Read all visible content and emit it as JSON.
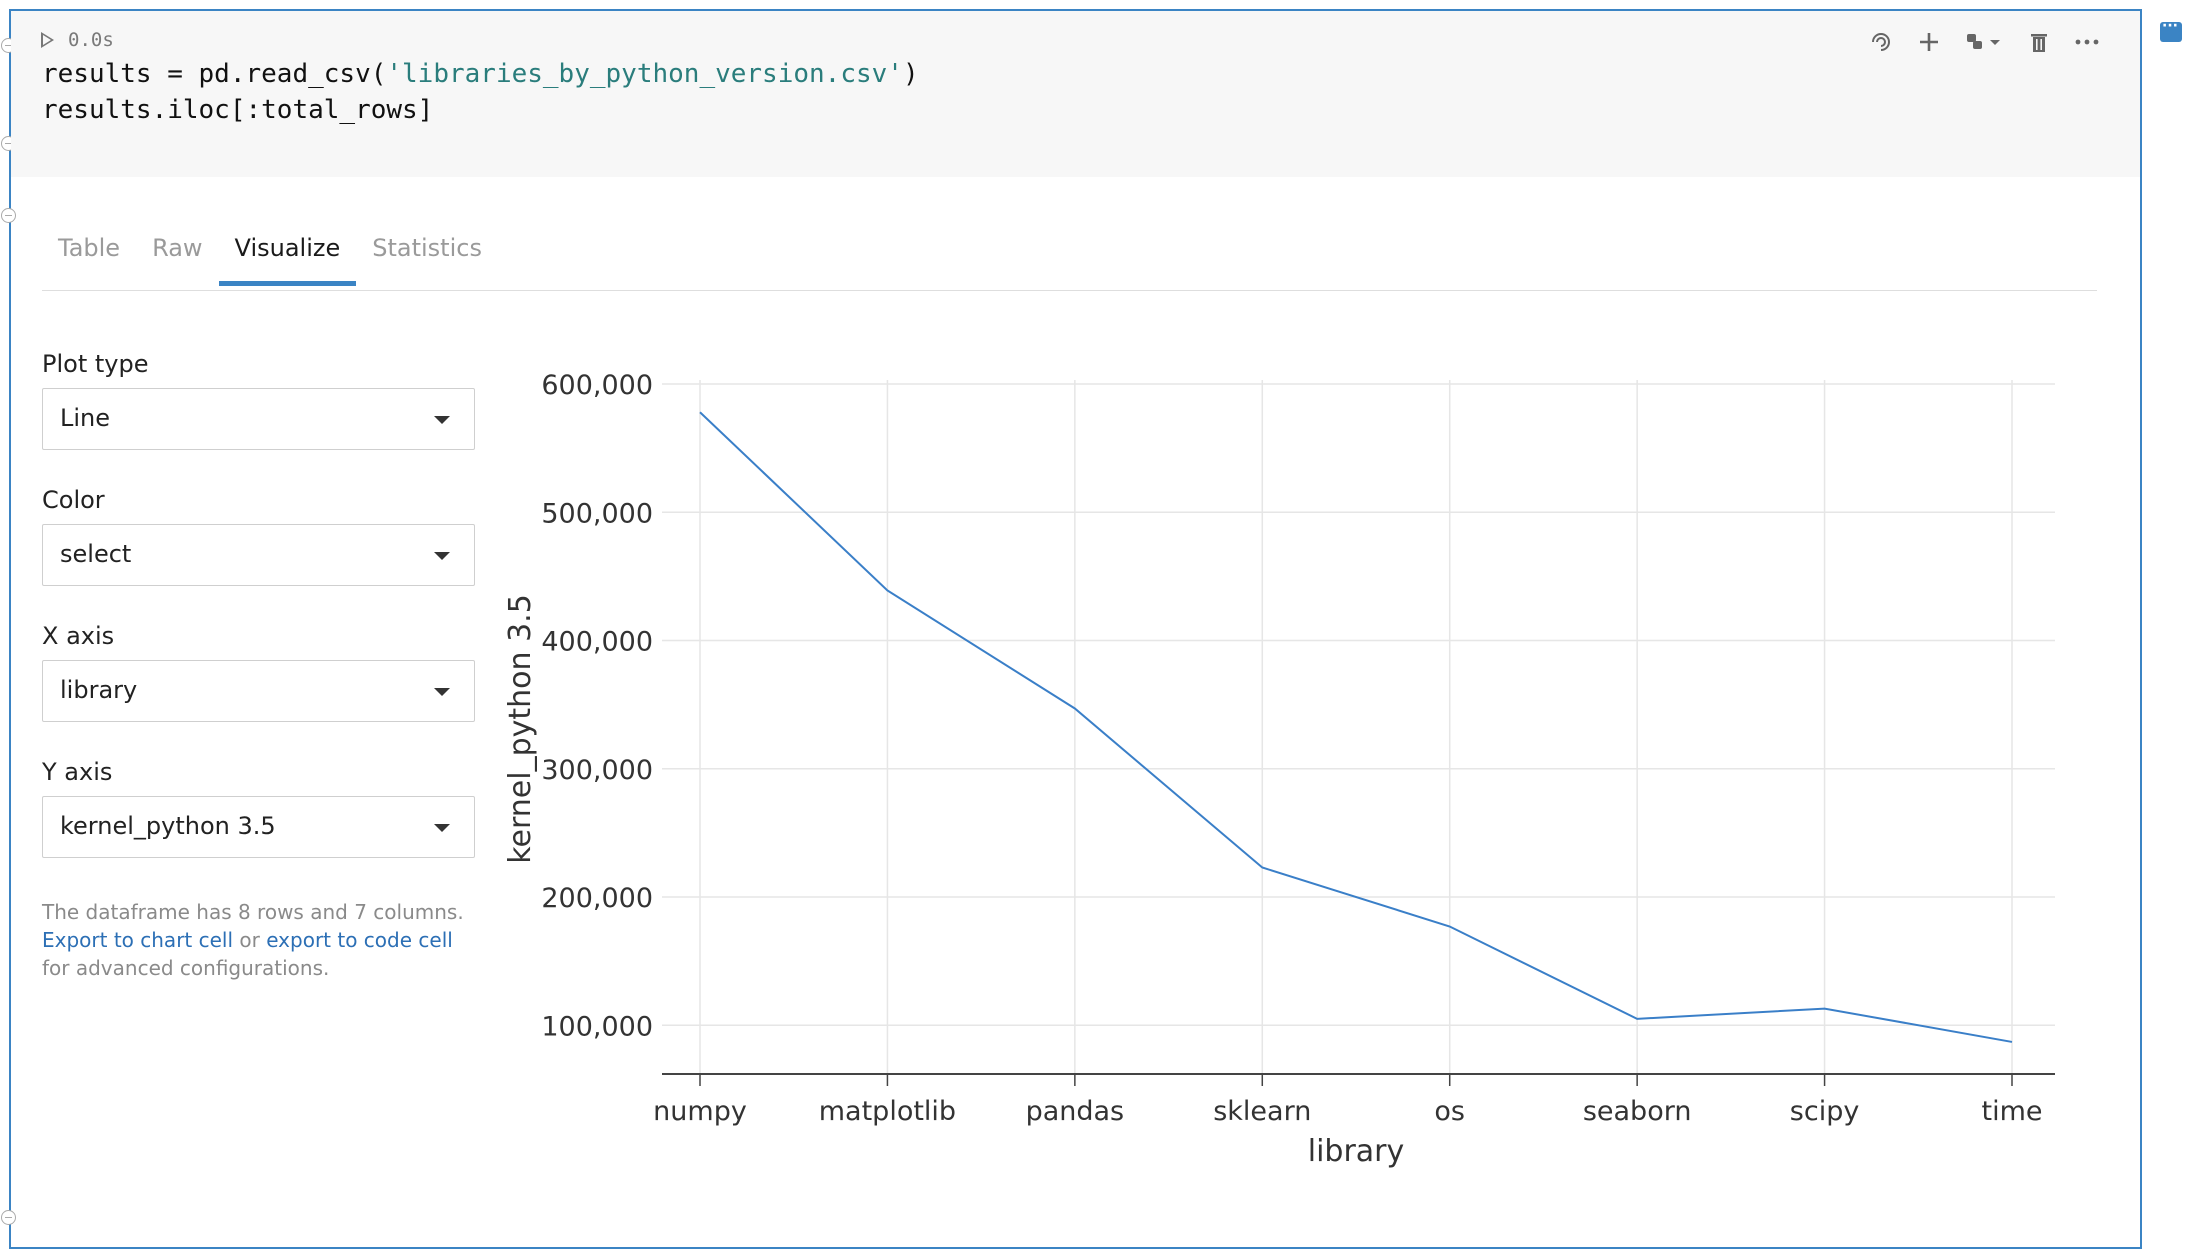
{
  "cell": {
    "exec_time": "0.0s",
    "code_line1_prefix": "results = pd.read_csv(",
    "code_line1_string": "'libraries_by_python_version.csv'",
    "code_line1_suffix": ")",
    "code_line2": "results.iloc[:total_rows]"
  },
  "toolbar": {
    "icons": [
      "ai-assistant-icon",
      "add-icon",
      "python-kernel-icon",
      "delete-icon",
      "more-icon"
    ]
  },
  "tabs": [
    {
      "label": "Table",
      "active": false
    },
    {
      "label": "Raw",
      "active": false
    },
    {
      "label": "Visualize",
      "active": true
    },
    {
      "label": "Statistics",
      "active": false
    }
  ],
  "controls": {
    "plot_type": {
      "label": "Plot type",
      "value": "Line"
    },
    "color": {
      "label": "Color",
      "value": "select"
    },
    "x_axis": {
      "label": "X axis",
      "value": "library"
    },
    "y_axis": {
      "label": "Y axis",
      "value": "kernel_python 3.5"
    }
  },
  "info": {
    "line1": "The dataframe has 8 rows and 7 columns.",
    "export_chart": "Export to chart cell",
    "or": " or ",
    "export_code": "export to code cell",
    "line3": "for advanced configurations."
  },
  "chart_data": {
    "type": "line",
    "categories": [
      "numpy",
      "matplotlib",
      "pandas",
      "sklearn",
      "os",
      "seaborn",
      "scipy",
      "time"
    ],
    "series": [
      {
        "values": [
          578000,
          439000,
          347000,
          223000,
          177000,
          105000,
          113000,
          87000
        ]
      }
    ],
    "xlabel": "library",
    "ylabel": "kernel_python 3.5",
    "yticks": [
      100000,
      200000,
      300000,
      400000,
      500000,
      600000
    ],
    "ytick_labels": [
      "100,000",
      "200,000",
      "300,000",
      "400,000",
      "500,000",
      "600,000"
    ],
    "ylim": [
      62000,
      600000
    ],
    "grid": true,
    "line_color": "#3a7fc8"
  }
}
